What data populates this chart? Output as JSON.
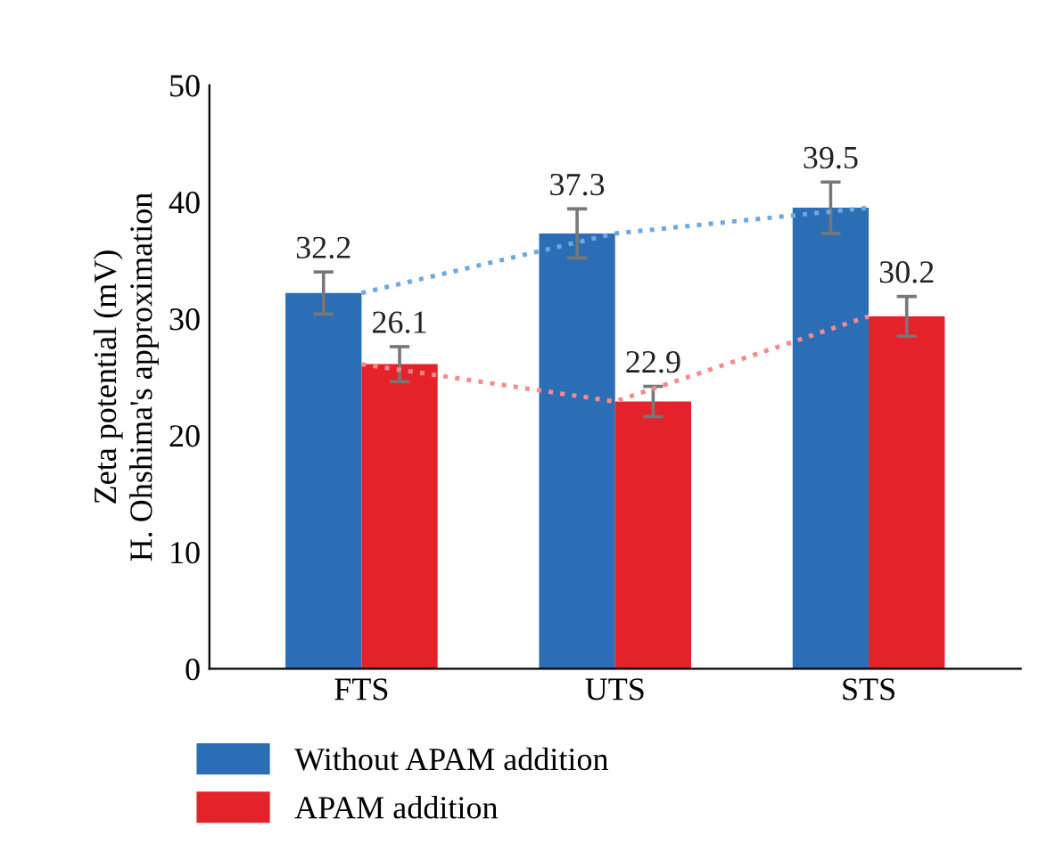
{
  "chart_data": {
    "type": "bar",
    "ylabel": "Zeta potential (mV)\nH. Ohshima's approximation",
    "categories": [
      "FTS",
      "UTS",
      "STS"
    ],
    "series": [
      {
        "name": "Without APAM addition",
        "color": "#2c6eb5",
        "values": [
          32.2,
          37.3,
          39.5
        ],
        "errors": [
          1.8,
          2.1,
          2.2
        ]
      },
      {
        "name": "APAM addition",
        "color": "#e3222a",
        "values": [
          26.1,
          22.9,
          30.2
        ],
        "errors": [
          1.5,
          1.3,
          1.7
        ]
      },
      {
        "type": "line",
        "color": "#6fa8e0",
        "values": [
          32.2,
          37.3,
          39.5
        ],
        "value_labels": [
          null,
          null,
          null
        ],
        "line_style": "dotted",
        "marker": "none"
      },
      {
        "type": "line",
        "color": "#f58a8f",
        "values": [
          26.1,
          22.9,
          30.2
        ],
        "value_labels": [
          null,
          null,
          null
        ],
        "line_style": "dotted",
        "marker": "none"
      }
    ],
    "ylim": [
      0,
      50
    ],
    "yticks": [
      0,
      10,
      20,
      30,
      40,
      50
    ],
    "data_labels": true,
    "grid": false,
    "legend": "bottom"
  }
}
